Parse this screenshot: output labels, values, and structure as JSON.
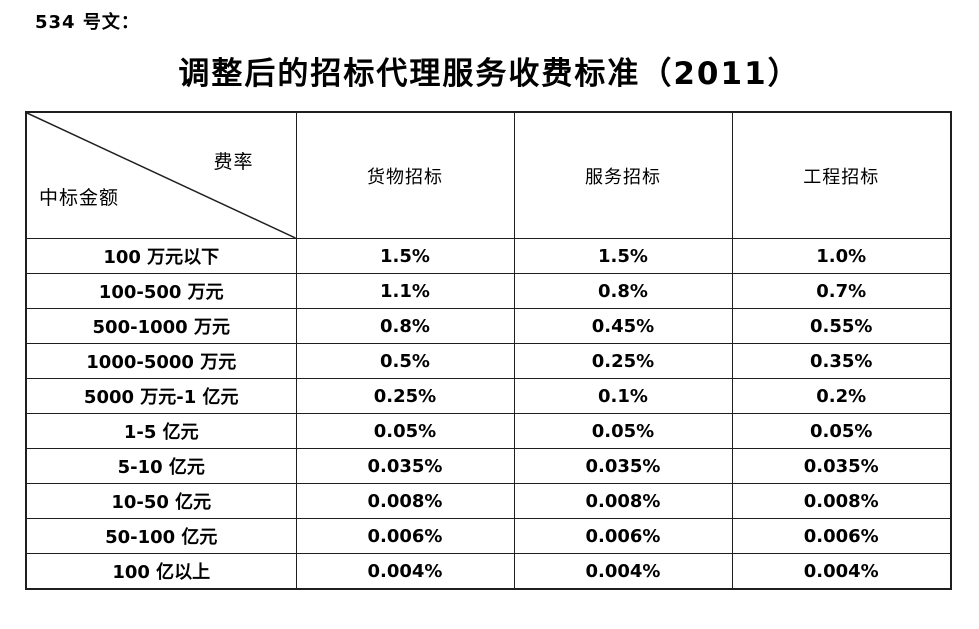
{
  "document": {
    "doc_number": "534 号文：",
    "title": "调整后的招标代理服务收费标准（2011）"
  },
  "table": {
    "corner": {
      "top_right": "费率",
      "bottom_left": "中标金额"
    },
    "columns": [
      "货物招标",
      "服务招标",
      "工程招标"
    ],
    "rows": [
      {
        "label": "100 万元以下",
        "values": [
          "1.5%",
          "1.5%",
          "1.0%"
        ]
      },
      {
        "label": "100-500 万元",
        "values": [
          "1.1%",
          "0.8%",
          "0.7%"
        ]
      },
      {
        "label": "500-1000 万元",
        "values": [
          "0.8%",
          "0.45%",
          "0.55%"
        ]
      },
      {
        "label": "1000-5000 万元",
        "values": [
          "0.5%",
          "0.25%",
          "0.35%"
        ]
      },
      {
        "label": "5000 万元-1 亿元",
        "values": [
          "0.25%",
          "0.1%",
          "0.2%"
        ]
      },
      {
        "label": "1-5 亿元",
        "values": [
          "0.05%",
          "0.05%",
          "0.05%"
        ]
      },
      {
        "label": "5-10 亿元",
        "values": [
          "0.035%",
          "0.035%",
          "0.035%"
        ]
      },
      {
        "label": "10-50 亿元",
        "values": [
          "0.008%",
          "0.008%",
          "0.008%"
        ]
      },
      {
        "label": "50-100 亿元",
        "values": [
          "0.006%",
          "0.006%",
          "0.006%"
        ]
      },
      {
        "label": "100 亿以上",
        "values": [
          "0.004%",
          "0.004%",
          "0.004%"
        ]
      }
    ]
  },
  "colors": {
    "text": "#000000",
    "border": "#1f1f1f",
    "background": "#ffffff"
  }
}
